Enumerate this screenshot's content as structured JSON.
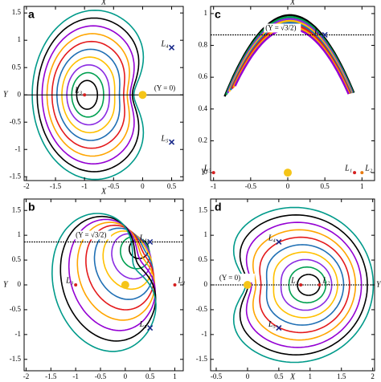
{
  "panels": [
    {
      "label": "a",
      "x_label": "X",
      "x_label_side": "top",
      "y_label": "Y",
      "y_label_side": "left",
      "xlim": [
        -2.04,
        0.7
      ],
      "ylim": [
        -1.57,
        1.62
      ],
      "xticks": [
        -2,
        -1.5,
        -1,
        -0.5,
        0,
        0.5
      ],
      "yticks": [
        -1.5,
        -1,
        -0.5,
        0,
        0.5,
        1,
        1.5
      ],
      "guide": {
        "y": 0,
        "label": "(Y = 0)"
      },
      "points": [
        {
          "label": "L₄",
          "x": 0.5,
          "y": 0.866,
          "marker": "cross",
          "color": "#1a2a8a"
        },
        {
          "label": "L₅",
          "x": 0.5,
          "y": -0.866,
          "marker": "cross",
          "color": "#1a2a8a"
        },
        {
          "label": "L₃",
          "x": -1,
          "y": 0,
          "marker": "dot",
          "color": "#d62020"
        },
        {
          "x": 0,
          "y": 0,
          "marker": "sun",
          "color": "#f5c518"
        }
      ]
    },
    {
      "label": "c",
      "x_label": "X",
      "x_label_side": "top",
      "y_label": "Y",
      "y_label_side": "left",
      "xlim": [
        -1.04,
        1.17
      ],
      "ylim": [
        -0.05,
        1.045
      ],
      "xticks": [
        -1,
        -0.5,
        0,
        0.5,
        1
      ],
      "yticks": [
        0,
        0.2,
        0.4,
        0.6,
        0.8,
        1
      ],
      "guide": {
        "y": 0.866,
        "label": "(Y = √3/2)"
      },
      "points": [
        {
          "label": "L₄",
          "x": 0.5,
          "y": 0.866,
          "marker": "cross",
          "color": "#1a2a8a"
        },
        {
          "label": "L₃",
          "x": -1,
          "y": 0,
          "marker": "dot",
          "color": "#d62020"
        },
        {
          "label": "L₁",
          "x": 0.9,
          "y": 0,
          "marker": "dot",
          "color": "#d62020"
        },
        {
          "label": "L₂",
          "x": 1,
          "y": 0,
          "marker": "dot",
          "color": "#e87a10"
        },
        {
          "x": 0,
          "y": 0,
          "marker": "sun",
          "color": "#f5c518"
        }
      ]
    },
    {
      "label": "b",
      "x_label": "X",
      "x_label_side": "top",
      "y_label": "Y",
      "y_label_side": "left",
      "xlim": [
        -2.04,
        1.17
      ],
      "ylim": [
        -1.73,
        1.73
      ],
      "xticks": [
        -2,
        -1.5,
        -1,
        -0.5,
        0,
        0.5,
        1
      ],
      "yticks": [
        -1.5,
        -1,
        -0.5,
        0,
        0.5,
        1,
        1.5
      ],
      "guide": {
        "y": 0.866,
        "label": "(Y = √3/2)"
      },
      "points": [
        {
          "label": "L₄",
          "x": 0.5,
          "y": 0.866,
          "marker": "cross",
          "color": "#1a2a8a"
        },
        {
          "label": "L₅",
          "x": 0.5,
          "y": -0.866,
          "marker": "cross",
          "color": "#1a2a8a"
        },
        {
          "label": "L₃",
          "x": -1,
          "y": 0,
          "marker": "dot",
          "color": "#d62020"
        },
        {
          "label": "L₁",
          "x": 1,
          "y": 0,
          "marker": "dot",
          "color": "#d62020"
        },
        {
          "x": 0,
          "y": 0,
          "marker": "sun",
          "color": "#f5c518"
        }
      ]
    },
    {
      "label": "d",
      "x_label": "X",
      "x_label_side": "bottom",
      "y_label": "Y",
      "y_label_side": "right",
      "xlim": [
        -0.59,
        2.03
      ],
      "ylim": [
        -1.73,
        1.73
      ],
      "xticks": [
        -0.5,
        0,
        0.5,
        1,
        1.5,
        2
      ],
      "yticks": [
        -1.5,
        -1,
        -0.5,
        0,
        0.5,
        1,
        1.5
      ],
      "guide": {
        "y": 0,
        "label": "(Y = 0)"
      },
      "points": [
        {
          "label": "L₄",
          "x": 0.5,
          "y": 0.866,
          "marker": "cross",
          "color": "#1a2a8a"
        },
        {
          "label": "L₅",
          "x": 0.5,
          "y": -0.866,
          "marker": "cross",
          "color": "#1a2a8a"
        },
        {
          "label": "L₁",
          "x": 0.85,
          "y": 0,
          "marker": "dot",
          "color": "#d62020"
        },
        {
          "label": "L₂",
          "x": 1.15,
          "y": 0,
          "marker": "dot",
          "color": "#d62020"
        },
        {
          "x": 0,
          "y": 0,
          "marker": "sun",
          "color": "#f5c518"
        }
      ]
    }
  ]
}
